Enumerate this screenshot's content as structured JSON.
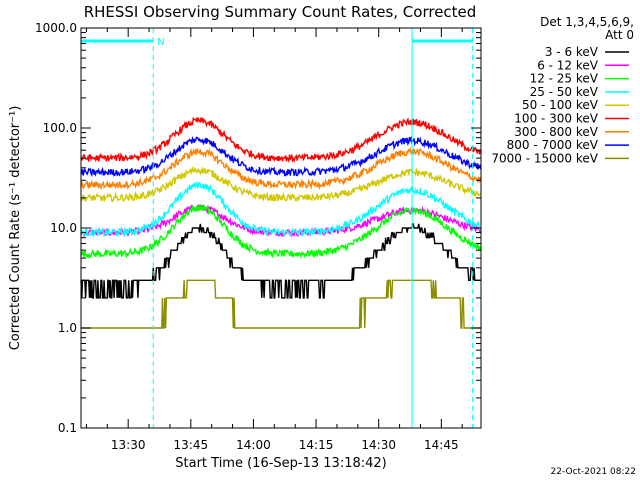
{
  "chart_data": {
    "type": "line",
    "title": "RHESSI Observing Summary Count Rates, Corrected",
    "xlabel": "Start Time (16-Sep-13 13:18:42)",
    "ylabel": "Corrected Count Rate (s⁻¹ detector⁻¹)",
    "yscale": "log",
    "ylim": [
      0.1,
      1000
    ],
    "xlim": [
      "13:18:42",
      "14:54:30"
    ],
    "x_ticks": [
      "13:30",
      "13:45",
      "14:00",
      "14:15",
      "14:30",
      "14:45"
    ],
    "y_ticks": [
      "0.1",
      "1.0",
      "10.0",
      "100.0",
      "1000.0"
    ],
    "legend": {
      "placement": "right",
      "header_line1": "Det 1,3,4,5,6,9,",
      "header_line2": "Att 0"
    },
    "series": [
      {
        "name": "3 - 6 keV",
        "color": "#000000",
        "base": 2.5,
        "peak1": 10,
        "peak2": 10
      },
      {
        "name": "6 - 12 keV",
        "color": "#ff00ff",
        "base": 9,
        "peak1": 16,
        "peak2": 15
      },
      {
        "name": "12 - 25 keV",
        "color": "#00ff00",
        "base": 5.5,
        "peak1": 16,
        "peak2": 15
      },
      {
        "name": "25 - 50 keV",
        "color": "#00ffff",
        "base": 9,
        "peak1": 27,
        "peak2": 24
      },
      {
        "name": "50 - 100 keV",
        "color": "#d2c800",
        "base": 20,
        "peak1": 38,
        "peak2": 36
      },
      {
        "name": "100 - 300 keV",
        "color": "#ff0000",
        "base": 50,
        "peak1": 118,
        "peak2": 115
      },
      {
        "name": "300 - 800 keV",
        "color": "#ff7f00",
        "base": 27,
        "peak1": 58,
        "peak2": 58
      },
      {
        "name": "800 - 7000 keV",
        "color": "#0000ff",
        "base": 36,
        "peak1": 77,
        "peak2": 75
      },
      {
        "name": "7000 - 15000 keV",
        "color": "#8c8c00",
        "base": 1.0,
        "peak1": 3.0,
        "peak2": 3.0
      }
    ],
    "night_markers": {
      "color": "#00ffff",
      "label": "N",
      "intervals": [
        [
          "13:18:42",
          "13:36:00"
        ],
        [
          "14:38:00",
          "14:52:30"
        ]
      ]
    },
    "footer_date": "22-Oct-2021 08:22"
  }
}
